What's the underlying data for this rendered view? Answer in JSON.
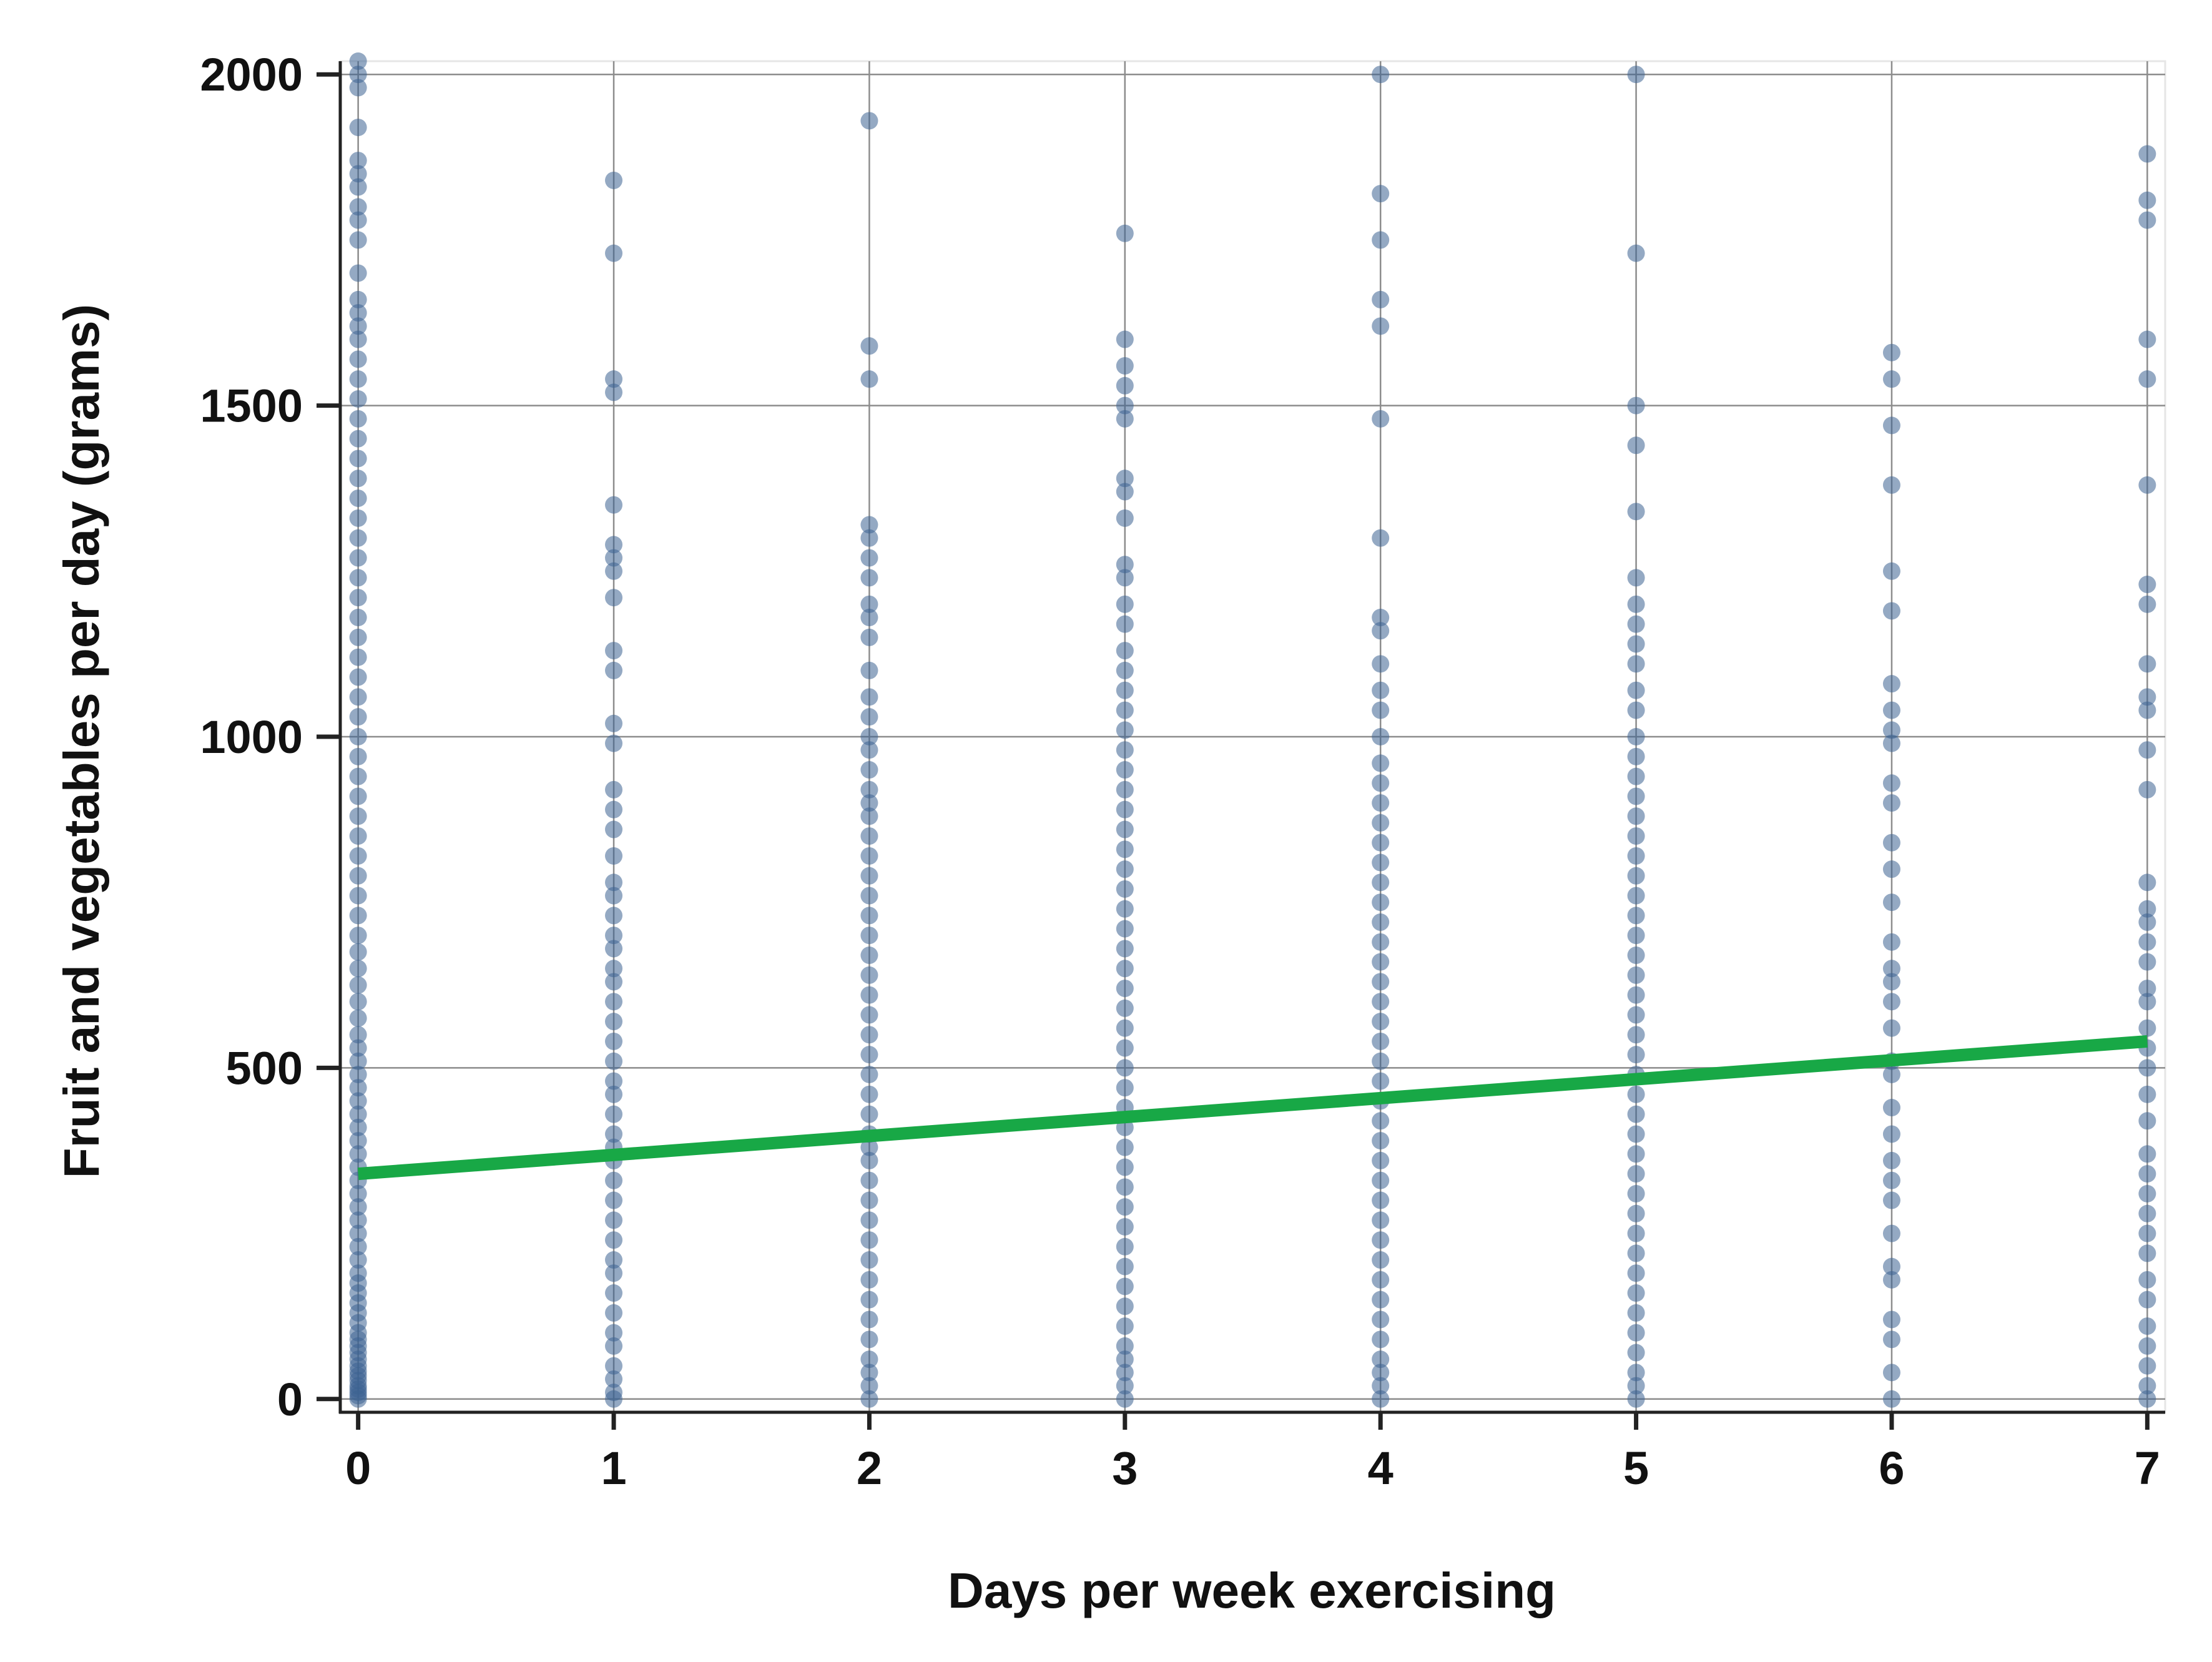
{
  "chart_data": {
    "type": "scatter",
    "title": "",
    "xlabel": "Days per week exercising",
    "ylabel": "Fruit and vegetables per day (grams)",
    "xlim": [
      -0.07,
      7.07
    ],
    "ylim": [
      -20,
      2020
    ],
    "x_ticks": [
      0,
      1,
      2,
      3,
      4,
      5,
      6,
      7
    ],
    "y_ticks": [
      0,
      500,
      1000,
      1500,
      2000
    ],
    "grid": true,
    "legend": "none",
    "colors": {
      "points": "#3d6391",
      "trend": "#18a846",
      "grid": "#8c8c8c",
      "axis": "#222222"
    },
    "series": [
      {
        "kind": "points",
        "points_by_x": [
          {
            "x": 0,
            "y": [
              0,
              5,
              10,
              15,
              20,
              28,
              35,
              42,
              50,
              60,
              70,
              80,
              90,
              100,
              115,
              130,
              145,
              160,
              175,
              190,
              210,
              230,
              250,
              270,
              290,
              310,
              330,
              350,
              370,
              390,
              410,
              430,
              450,
              470,
              490,
              510,
              530,
              550,
              575,
              600,
              625,
              650,
              675,
              700,
              730,
              760,
              790,
              820,
              850,
              880,
              910,
              940,
              970,
              1000,
              1030,
              1060,
              1090,
              1120,
              1150,
              1180,
              1210,
              1240,
              1270,
              1300,
              1330,
              1360,
              1390,
              1420,
              1450,
              1480,
              1510,
              1540,
              1570,
              1600,
              1620,
              1640,
              1660,
              1700,
              1750,
              1780,
              1800,
              1830,
              1850,
              1870,
              1920,
              1980,
              2000,
              2020
            ]
          },
          {
            "x": 1,
            "y": [
              0,
              10,
              30,
              50,
              80,
              100,
              130,
              160,
              190,
              210,
              240,
              270,
              300,
              330,
              360,
              380,
              400,
              430,
              460,
              480,
              510,
              540,
              570,
              600,
              630,
              650,
              680,
              700,
              730,
              760,
              780,
              820,
              860,
              890,
              920,
              990,
              1020,
              1100,
              1130,
              1210,
              1250,
              1270,
              1290,
              1350,
              1520,
              1540,
              1730,
              1840
            ]
          },
          {
            "x": 2,
            "y": [
              0,
              20,
              40,
              60,
              90,
              120,
              150,
              180,
              210,
              240,
              270,
              300,
              330,
              360,
              380,
              400,
              430,
              460,
              490,
              520,
              550,
              580,
              610,
              640,
              670,
              700,
              730,
              760,
              790,
              820,
              850,
              880,
              900,
              920,
              950,
              980,
              1000,
              1030,
              1060,
              1100,
              1150,
              1180,
              1200,
              1240,
              1270,
              1300,
              1320,
              1540,
              1590,
              1930
            ]
          },
          {
            "x": 3,
            "y": [
              0,
              20,
              40,
              60,
              80,
              110,
              140,
              170,
              200,
              230,
              260,
              290,
              320,
              350,
              380,
              410,
              440,
              470,
              500,
              530,
              560,
              590,
              620,
              650,
              680,
              710,
              740,
              770,
              800,
              830,
              860,
              890,
              920,
              950,
              980,
              1010,
              1040,
              1070,
              1100,
              1130,
              1170,
              1200,
              1240,
              1260,
              1330,
              1370,
              1390,
              1480,
              1500,
              1530,
              1560,
              1600,
              1760
            ]
          },
          {
            "x": 4,
            "y": [
              0,
              20,
              40,
              60,
              90,
              120,
              150,
              180,
              210,
              240,
              270,
              300,
              330,
              360,
              390,
              420,
              450,
              480,
              510,
              540,
              570,
              600,
              630,
              660,
              690,
              720,
              750,
              780,
              810,
              840,
              870,
              900,
              930,
              960,
              1000,
              1040,
              1070,
              1110,
              1160,
              1180,
              1300,
              1480,
              1620,
              1660,
              1750,
              1820,
              2000
            ]
          },
          {
            "x": 5,
            "y": [
              0,
              20,
              40,
              70,
              100,
              130,
              160,
              190,
              220,
              250,
              280,
              310,
              340,
              370,
              400,
              430,
              460,
              490,
              520,
              550,
              580,
              610,
              640,
              670,
              700,
              730,
              760,
              790,
              820,
              850,
              880,
              910,
              940,
              970,
              1000,
              1040,
              1070,
              1110,
              1140,
              1170,
              1200,
              1240,
              1340,
              1440,
              1500,
              1730,
              2000
            ]
          },
          {
            "x": 6,
            "y": [
              0,
              40,
              90,
              120,
              180,
              200,
              250,
              300,
              330,
              360,
              400,
              440,
              490,
              510,
              560,
              600,
              630,
              650,
              690,
              750,
              800,
              840,
              900,
              930,
              990,
              1010,
              1040,
              1080,
              1190,
              1250,
              1380,
              1470,
              1540,
              1580
            ]
          },
          {
            "x": 7,
            "y": [
              0,
              20,
              50,
              80,
              110,
              150,
              180,
              220,
              250,
              280,
              310,
              340,
              370,
              420,
              460,
              500,
              530,
              560,
              600,
              620,
              660,
              690,
              720,
              740,
              780,
              920,
              980,
              1040,
              1060,
              1110,
              1200,
              1230,
              1380,
              1540,
              1600,
              1780,
              1810,
              1880
            ]
          }
        ]
      },
      {
        "kind": "trend",
        "x": [
          0,
          7
        ],
        "y": [
          340,
          540
        ]
      }
    ]
  }
}
